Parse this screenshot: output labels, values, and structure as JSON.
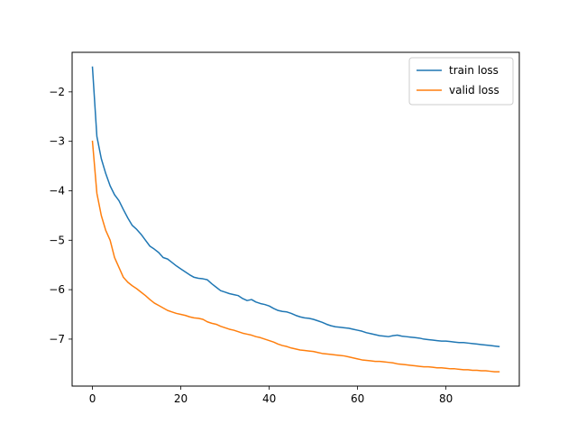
{
  "chart_data": {
    "type": "line",
    "title": "",
    "xlabel": "",
    "ylabel": "",
    "xlim": [
      -4.6,
      96.6
    ],
    "ylim": [
      -7.95,
      -1.2
    ],
    "xticks": [
      0,
      20,
      40,
      60,
      80
    ],
    "yticks": [
      -2,
      -3,
      -4,
      -5,
      -6,
      -7
    ],
    "grid": false,
    "legend_position": "top-right",
    "series": [
      {
        "name": "train loss",
        "color": "#1f77b4",
        "x": [
          0,
          1,
          2,
          3,
          4,
          5,
          6,
          7,
          8,
          9,
          10,
          11,
          12,
          13,
          14,
          15,
          16,
          17,
          18,
          19,
          20,
          21,
          22,
          23,
          24,
          25,
          26,
          27,
          28,
          29,
          30,
          31,
          32,
          33,
          34,
          35,
          36,
          37,
          38,
          39,
          40,
          41,
          42,
          43,
          44,
          45,
          46,
          47,
          48,
          49,
          50,
          51,
          52,
          53,
          54,
          55,
          56,
          57,
          58,
          59,
          60,
          61,
          62,
          63,
          64,
          65,
          66,
          67,
          68,
          69,
          70,
          71,
          72,
          73,
          74,
          75,
          76,
          77,
          78,
          79,
          80,
          81,
          82,
          83,
          84,
          85,
          86,
          87,
          88,
          89,
          90,
          91,
          92
        ],
        "y": [
          -1.5,
          -2.9,
          -3.35,
          -3.65,
          -3.9,
          -4.08,
          -4.2,
          -4.38,
          -4.55,
          -4.7,
          -4.78,
          -4.88,
          -5.0,
          -5.12,
          -5.18,
          -5.25,
          -5.35,
          -5.38,
          -5.45,
          -5.52,
          -5.58,
          -5.64,
          -5.7,
          -5.75,
          -5.77,
          -5.78,
          -5.8,
          -5.88,
          -5.95,
          -6.02,
          -6.05,
          -6.08,
          -6.1,
          -6.12,
          -6.18,
          -6.22,
          -6.2,
          -6.25,
          -6.28,
          -6.3,
          -6.33,
          -6.38,
          -6.42,
          -6.44,
          -6.45,
          -6.48,
          -6.52,
          -6.55,
          -6.57,
          -6.58,
          -6.6,
          -6.63,
          -6.66,
          -6.7,
          -6.73,
          -6.75,
          -6.76,
          -6.77,
          -6.78,
          -6.8,
          -6.82,
          -6.84,
          -6.87,
          -6.89,
          -6.91,
          -6.93,
          -6.94,
          -6.95,
          -6.93,
          -6.92,
          -6.94,
          -6.95,
          -6.96,
          -6.97,
          -6.98,
          -7.0,
          -7.01,
          -7.02,
          -7.03,
          -7.04,
          -7.04,
          -7.05,
          -7.06,
          -7.07,
          -7.07,
          -7.08,
          -7.09,
          -7.1,
          -7.11,
          -7.12,
          -7.13,
          -7.14,
          -7.15
        ]
      },
      {
        "name": "valid loss",
        "color": "#ff7f0e",
        "x": [
          0,
          1,
          2,
          3,
          4,
          5,
          6,
          7,
          8,
          9,
          10,
          11,
          12,
          13,
          14,
          15,
          16,
          17,
          18,
          19,
          20,
          21,
          22,
          23,
          24,
          25,
          26,
          27,
          28,
          29,
          30,
          31,
          32,
          33,
          34,
          35,
          36,
          37,
          38,
          39,
          40,
          41,
          42,
          43,
          44,
          45,
          46,
          47,
          48,
          49,
          50,
          51,
          52,
          53,
          54,
          55,
          56,
          57,
          58,
          59,
          60,
          61,
          62,
          63,
          64,
          65,
          66,
          67,
          68,
          69,
          70,
          71,
          72,
          73,
          74,
          75,
          76,
          77,
          78,
          79,
          80,
          81,
          82,
          83,
          84,
          85,
          86,
          87,
          88,
          89,
          90,
          91,
          92
        ],
        "y": [
          -3.0,
          -4.05,
          -4.5,
          -4.8,
          -5.0,
          -5.35,
          -5.55,
          -5.75,
          -5.85,
          -5.92,
          -5.98,
          -6.05,
          -6.12,
          -6.2,
          -6.27,
          -6.32,
          -6.37,
          -6.42,
          -6.45,
          -6.48,
          -6.5,
          -6.52,
          -6.55,
          -6.57,
          -6.58,
          -6.6,
          -6.65,
          -6.68,
          -6.7,
          -6.74,
          -6.77,
          -6.8,
          -6.82,
          -6.85,
          -6.88,
          -6.9,
          -6.92,
          -6.95,
          -6.97,
          -7.0,
          -7.03,
          -7.06,
          -7.1,
          -7.13,
          -7.15,
          -7.18,
          -7.2,
          -7.22,
          -7.23,
          -7.24,
          -7.25,
          -7.27,
          -7.29,
          -7.3,
          -7.31,
          -7.32,
          -7.33,
          -7.34,
          -7.36,
          -7.38,
          -7.4,
          -7.42,
          -7.43,
          -7.44,
          -7.45,
          -7.45,
          -7.46,
          -7.47,
          -7.48,
          -7.5,
          -7.51,
          -7.52,
          -7.53,
          -7.54,
          -7.55,
          -7.56,
          -7.56,
          -7.57,
          -7.58,
          -7.58,
          -7.59,
          -7.6,
          -7.6,
          -7.61,
          -7.62,
          -7.62,
          -7.63,
          -7.63,
          -7.64,
          -7.64,
          -7.65,
          -7.66,
          -7.66
        ]
      }
    ]
  }
}
